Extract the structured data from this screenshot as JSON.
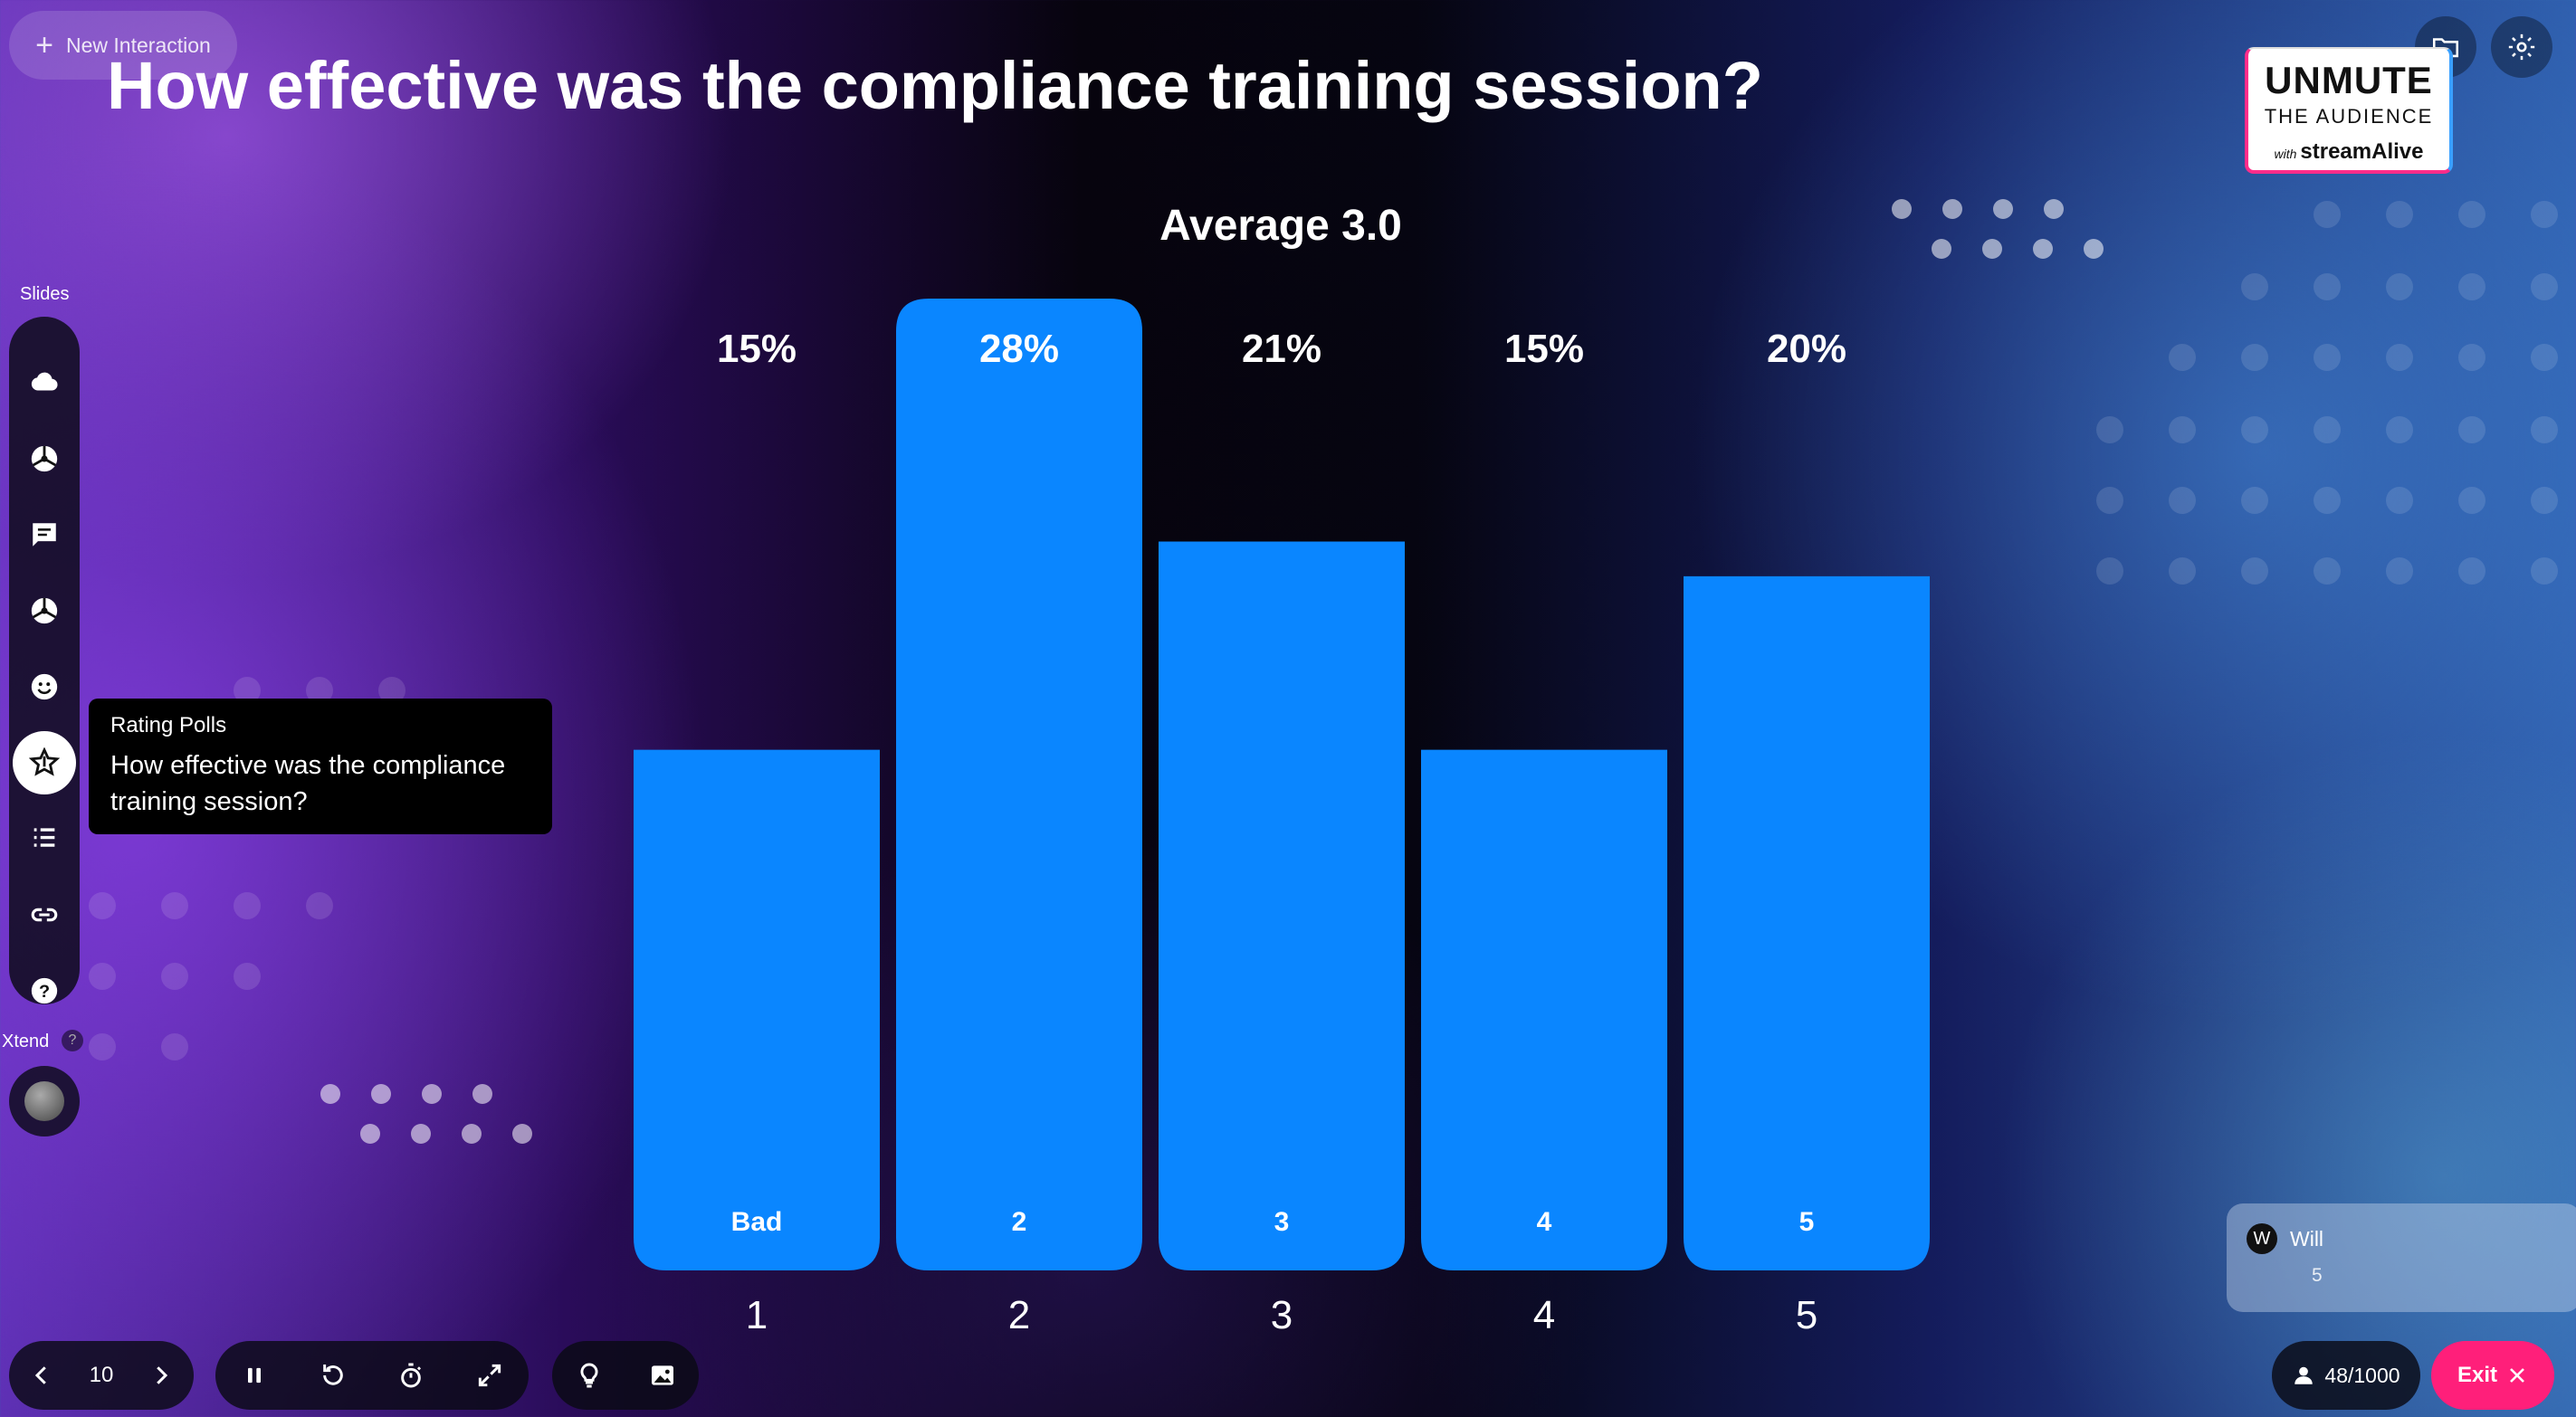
{
  "header": {
    "new_interaction_label": "New Interaction",
    "question": "How effective was the compliance training session?"
  },
  "logo": {
    "line1": "UNMUTE",
    "line2": "THE AUDIENCE",
    "line3_prefix": "with",
    "line3": "streamAlive"
  },
  "top_icons": [
    "folder-icon",
    "gear-icon"
  ],
  "sidebar": {
    "slides_label": "Slides",
    "items": [
      "cloud-icon",
      "wheel-icon",
      "chat-icon",
      "wheel-icon",
      "smiley-icon",
      "star-icon",
      "list-icon",
      "link-icon",
      "help-icon"
    ],
    "xtend_label": "Xtend",
    "xtend_help": "?"
  },
  "tooltip": {
    "type": "Rating Polls",
    "question": "How effective was the compliance training session?"
  },
  "average_text": "Average 3.0",
  "chart_data": {
    "type": "bar",
    "categories": [
      "1",
      "2",
      "3",
      "4",
      "5"
    ],
    "bar_labels": [
      "Bad",
      "2",
      "3",
      "4",
      "5"
    ],
    "values": [
      15,
      28,
      21,
      15,
      20
    ],
    "value_labels": [
      "15%",
      "28%",
      "21%",
      "15%",
      "20%"
    ],
    "color": "#0a86ff",
    "ylim": [
      0,
      28
    ]
  },
  "controls": {
    "page_number": "10",
    "responses": "48/1000",
    "exit_label": "Exit"
  },
  "response_card": {
    "initial": "W",
    "name": "Will",
    "value": "5"
  },
  "colors": {
    "bar": "#0a86ff",
    "exit": "#ff1f7a"
  }
}
